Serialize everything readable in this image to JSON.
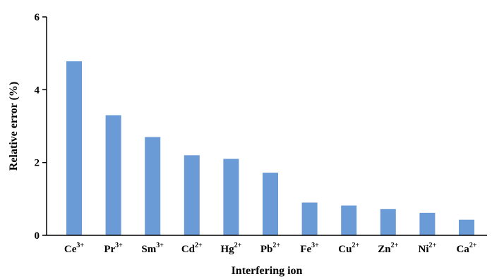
{
  "chart_data": {
    "type": "bar",
    "xlabel": "Interfering ion",
    "ylabel": "Relative error (%)",
    "ylim": [
      0,
      6
    ],
    "yticks": [
      0,
      2,
      4,
      6
    ],
    "grid": false,
    "bar_color": "#6a9bd6",
    "categories": [
      {
        "base": "Ce",
        "sup": "3+"
      },
      {
        "base": "Pr",
        "sup": "3+"
      },
      {
        "base": "Sm",
        "sup": "3+"
      },
      {
        "base": "Cd",
        "sup": "2+"
      },
      {
        "base": "Hg",
        "sup": "2+"
      },
      {
        "base": "Pb",
        "sup": "2+"
      },
      {
        "base": "Fe",
        "sup": "3+"
      },
      {
        "base": "Cu",
        "sup": "2+"
      },
      {
        "base": "Zn",
        "sup": "2+"
      },
      {
        "base": "Ni",
        "sup": "2+"
      },
      {
        "base": "Ca",
        "sup": "2+"
      }
    ],
    "values": [
      4.78,
      3.3,
      2.7,
      2.2,
      2.1,
      1.72,
      0.9,
      0.82,
      0.72,
      0.62,
      0.43
    ]
  }
}
